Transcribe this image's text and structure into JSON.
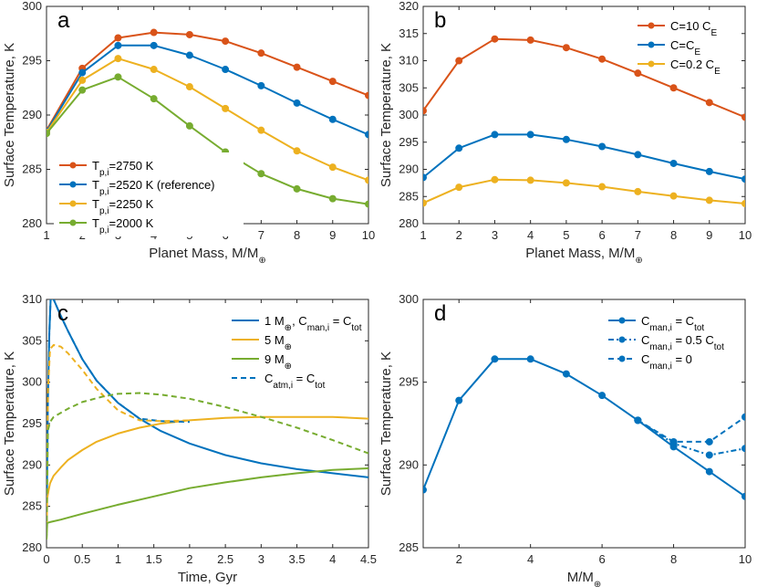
{
  "chart_data": [
    {
      "type": "line",
      "panel_label": "a",
      "xlabel_main": "Planet Mass, M/M",
      "xlabel_sub": "⊕",
      "ylabel": "Surface Temperature, K",
      "xlim": [
        1,
        10
      ],
      "ylim": [
        280,
        300
      ],
      "xticks": [
        "1",
        "2",
        "3",
        "4",
        "5",
        "6",
        "7",
        "8",
        "9",
        "10"
      ],
      "yticks": [
        "280",
        "285",
        "290",
        "295",
        "300"
      ],
      "legend_position": "bottom-left",
      "x": [
        1,
        2,
        3,
        4,
        5,
        6,
        7,
        8,
        9,
        10
      ],
      "series": [
        {
          "name_main": "T",
          "name_sub": "p,i",
          "name_rest": "=2750 K",
          "color": "#D95319",
          "dash": "",
          "marker": true,
          "values": [
            288.6,
            294.3,
            297.1,
            297.6,
            297.4,
            296.8,
            295.7,
            294.4,
            293.1,
            291.8
          ]
        },
        {
          "name_main": "T",
          "name_sub": "p,i",
          "name_rest": "=2520 K (reference)",
          "color": "#0072BD",
          "dash": "",
          "marker": true,
          "values": [
            288.5,
            293.9,
            296.4,
            296.4,
            295.5,
            294.2,
            292.7,
            291.1,
            289.6,
            288.2
          ]
        },
        {
          "name_main": "T",
          "name_sub": "p,i",
          "name_rest": "=2250 K",
          "color": "#EDB120",
          "dash": "",
          "marker": true,
          "values": [
            288.4,
            293.2,
            295.2,
            294.2,
            292.6,
            290.6,
            288.6,
            286.7,
            285.2,
            284.0
          ]
        },
        {
          "name_main": "T",
          "name_sub": "p,i",
          "name_rest": "=2000 K",
          "color": "#77AC30",
          "dash": "",
          "marker": true,
          "values": [
            288.3,
            292.3,
            293.5,
            291.5,
            289.0,
            286.6,
            284.6,
            283.2,
            282.3,
            281.8
          ]
        }
      ]
    },
    {
      "type": "line",
      "panel_label": "b",
      "xlabel_main": "Planet Mass, M/M",
      "xlabel_sub": "⊕",
      "ylabel": "Surface Temperature, K",
      "xlim": [
        1,
        10
      ],
      "ylim": [
        280,
        320
      ],
      "xticks": [
        "1",
        "2",
        "3",
        "4",
        "5",
        "6",
        "7",
        "8",
        "9",
        "10"
      ],
      "yticks": [
        "280",
        "285",
        "290",
        "295",
        "300",
        "305",
        "310",
        "315",
        "320"
      ],
      "legend_position": "top-right",
      "x": [
        1,
        2,
        3,
        4,
        5,
        6,
        7,
        8,
        9,
        10
      ],
      "series": [
        {
          "name_main": "C=10 C",
          "name_sub": "E",
          "name_rest": "",
          "color": "#D95319",
          "dash": "",
          "marker": true,
          "values": [
            300.8,
            310.0,
            314.0,
            313.8,
            312.4,
            310.3,
            307.7,
            305.0,
            302.3,
            299.6
          ]
        },
        {
          "name_main": "C=C",
          "name_sub": "E",
          "name_rest": "",
          "color": "#0072BD",
          "dash": "",
          "marker": true,
          "values": [
            288.5,
            293.9,
            296.4,
            296.4,
            295.5,
            294.2,
            292.7,
            291.1,
            289.6,
            288.2
          ]
        },
        {
          "name_main": "C=0.2 C",
          "name_sub": "E",
          "name_rest": "",
          "color": "#EDB120",
          "dash": "",
          "marker": true,
          "values": [
            283.8,
            286.7,
            288.1,
            288.0,
            287.5,
            286.8,
            285.9,
            285.1,
            284.3,
            283.7
          ]
        }
      ]
    },
    {
      "type": "line",
      "panel_label": "c",
      "xlabel_main": "Time, Gyr",
      "xlabel_sub": "",
      "ylabel": "Surface Temperature, K",
      "xlim": [
        0,
        4.5
      ],
      "ylim": [
        280,
        310
      ],
      "xticks": [
        "0",
        "0.5",
        "1",
        "1.5",
        "2",
        "2.5",
        "3",
        "3.5",
        "4",
        "4.5"
      ],
      "yticks": [
        "280",
        "285",
        "290",
        "295",
        "300",
        "305",
        "310"
      ],
      "legend_position": "top-right",
      "legend_entries": [
        {
          "main": "1 M",
          "sub": "⊕",
          "rest": ", C",
          "sub2": "man,i",
          "rest2": " = C",
          "sub3": "tot",
          "color": "#0072BD",
          "dash": ""
        },
        {
          "main": "5 M",
          "sub": "⊕",
          "rest": "",
          "sub2": "",
          "rest2": "",
          "sub3": "",
          "color": "#EDB120",
          "dash": ""
        },
        {
          "main": "9 M",
          "sub": "⊕",
          "rest": "",
          "sub2": "",
          "rest2": "",
          "sub3": "",
          "color": "#77AC30",
          "dash": ""
        },
        {
          "main": "C",
          "sub": "atm,i",
          "rest": " = C",
          "sub2": "tot",
          "rest2": "",
          "sub3": "",
          "color": "#0072BD",
          "dash": "6,4"
        }
      ],
      "series": [
        {
          "name": "1 M⊕ solid",
          "color": "#0072BD",
          "dash": "",
          "x": [
            0,
            0.01,
            0.02,
            0.04,
            0.06,
            0.1,
            0.2,
            0.3,
            0.5,
            0.7,
            1.0,
            1.3,
            1.6,
            2.0,
            2.5,
            3.0,
            3.5,
            4.0,
            4.5
          ],
          "values": [
            281,
            290,
            298,
            306,
            310.5,
            310,
            308,
            306.2,
            302.8,
            300.2,
            297.5,
            295.6,
            294.1,
            292.6,
            291.2,
            290.2,
            289.5,
            289.0,
            288.5
          ]
        },
        {
          "name": "5 M⊕ solid",
          "color": "#EDB120",
          "dash": "",
          "x": [
            0,
            0.01,
            0.03,
            0.05,
            0.1,
            0.2,
            0.3,
            0.5,
            0.7,
            1.0,
            1.3,
            1.6,
            2.0,
            2.5,
            3.0,
            3.5,
            4.0,
            4.5
          ],
          "values": [
            281,
            286,
            287,
            287.8,
            288.7,
            289.7,
            290.6,
            291.8,
            292.8,
            293.8,
            294.5,
            295.0,
            295.4,
            295.7,
            295.8,
            295.8,
            295.8,
            295.6
          ]
        },
        {
          "name": "9 M⊕ solid",
          "color": "#77AC30",
          "dash": "",
          "x": [
            0,
            0.01,
            0.05,
            0.2,
            0.5,
            1.0,
            1.5,
            2.0,
            2.5,
            3.0,
            3.5,
            4.0,
            4.5
          ],
          "values": [
            281,
            283,
            283.1,
            283.4,
            284.1,
            285.2,
            286.2,
            287.2,
            287.9,
            288.5,
            289.0,
            289.4,
            289.6
          ]
        },
        {
          "name": "1 M⊕ dashed",
          "color": "#0072BD",
          "dash": "6,4",
          "x": [
            0,
            0.01,
            0.02,
            0.04,
            0.06,
            0.1,
            0.2,
            0.3,
            0.5,
            0.7,
            1.0,
            1.3,
            1.6,
            2.0
          ],
          "values": [
            281,
            290,
            298,
            306,
            310.5,
            310,
            308,
            306.2,
            302.8,
            300.2,
            297.5,
            295.6,
            295.3,
            295.2
          ]
        },
        {
          "name": "5 M⊕ dashed",
          "color": "#EDB120",
          "dash": "6,4",
          "x": [
            0,
            0.02,
            0.05,
            0.1,
            0.2,
            0.3,
            0.5,
            0.7,
            1.0,
            1.3,
            1.6,
            2.0
          ],
          "values": [
            281,
            299,
            304,
            304.5,
            304.3,
            303.5,
            301.5,
            299.2,
            296.6,
            295.4,
            295.3,
            295.4
          ]
        },
        {
          "name": "9 M⊕ dashed",
          "color": "#77AC30",
          "dash": "6,4",
          "x": [
            0,
            0.02,
            0.05,
            0.1,
            0.3,
            0.5,
            0.8,
            1.0,
            1.3,
            1.6,
            2.0,
            2.5,
            3.0,
            3.5,
            4.0,
            4.5
          ],
          "values": [
            281,
            294.2,
            295.2,
            295.8,
            296.8,
            297.6,
            298.3,
            298.6,
            298.7,
            298.5,
            298.0,
            297.0,
            295.8,
            294.5,
            293.0,
            291.4
          ]
        }
      ]
    },
    {
      "type": "line",
      "panel_label": "d",
      "xlabel_main": "M/M",
      "xlabel_sub": "⊕",
      "ylabel": "Surface Temperature, K",
      "xlim": [
        1,
        10
      ],
      "ylim": [
        285,
        300
      ],
      "xticks": [
        "2",
        "4",
        "6",
        "8",
        "10"
      ],
      "xtick_values": [
        2,
        4,
        6,
        8,
        10
      ],
      "yticks": [
        "285",
        "290",
        "295",
        "300"
      ],
      "legend_position": "top-right",
      "legend_entries": [
        {
          "main": "C",
          "sub": "man,i",
          "rest": " = C",
          "sub2": "tot",
          "rest2": "",
          "dash": ""
        },
        {
          "main": "C",
          "sub": "man,i",
          "rest": " = 0.5 C",
          "sub2": "tot",
          "rest2": "",
          "dash": "6,3,2,3"
        },
        {
          "main": "C",
          "sub": "man,i",
          "rest": " = 0",
          "sub2": "",
          "rest2": "",
          "dash": "6,4"
        }
      ],
      "color": "#0072BD",
      "series": [
        {
          "name": "C_man,i = C_tot",
          "dash": "",
          "x": [
            1,
            2,
            3,
            4,
            5,
            6,
            7,
            8,
            9,
            10
          ],
          "values": [
            288.5,
            293.9,
            296.4,
            296.4,
            295.5,
            294.2,
            292.7,
            291.1,
            289.6,
            288.1
          ]
        },
        {
          "name": "C_man,i = 0.5 C_tot",
          "dash": "6,3,2,3",
          "x": [
            7,
            8,
            9,
            10
          ],
          "values": [
            292.7,
            291.3,
            290.6,
            291.0
          ]
        },
        {
          "name": "C_man,i = 0",
          "dash": "6,4",
          "x": [
            7,
            8,
            9,
            10
          ],
          "values": [
            292.7,
            291.4,
            291.4,
            292.9
          ]
        }
      ]
    }
  ]
}
